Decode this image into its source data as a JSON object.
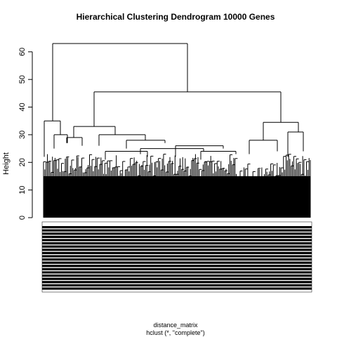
{
  "chart_data": {
    "type": "dendrogram",
    "title": "Hierarchical Clustering Dendrogram 10000 Genes",
    "ylabel": "Height",
    "xlabel": "distance_matrix",
    "subtitle": "hclust (*, \"complete\")",
    "ylim": [
      0,
      65
    ],
    "yticks": [
      0,
      10,
      20,
      30,
      40,
      50,
      60
    ],
    "grid": false,
    "leaf_count": 10000,
    "merges": [
      {
        "height": 63,
        "children": [
          "left_cluster",
          "right_group"
        ]
      },
      {
        "height": 45.5,
        "children": [
          "middle_cluster",
          "right_cluster"
        ]
      },
      {
        "height": 35,
        "children": [
          "left_cluster_a",
          "left_cluster_b"
        ]
      },
      {
        "height": 34.5,
        "children": [
          "right_cluster_a",
          "right_cluster_b"
        ]
      },
      {
        "height": 33,
        "children": [
          "middle_cluster_a",
          "middle_cluster_b"
        ]
      }
    ]
  }
}
